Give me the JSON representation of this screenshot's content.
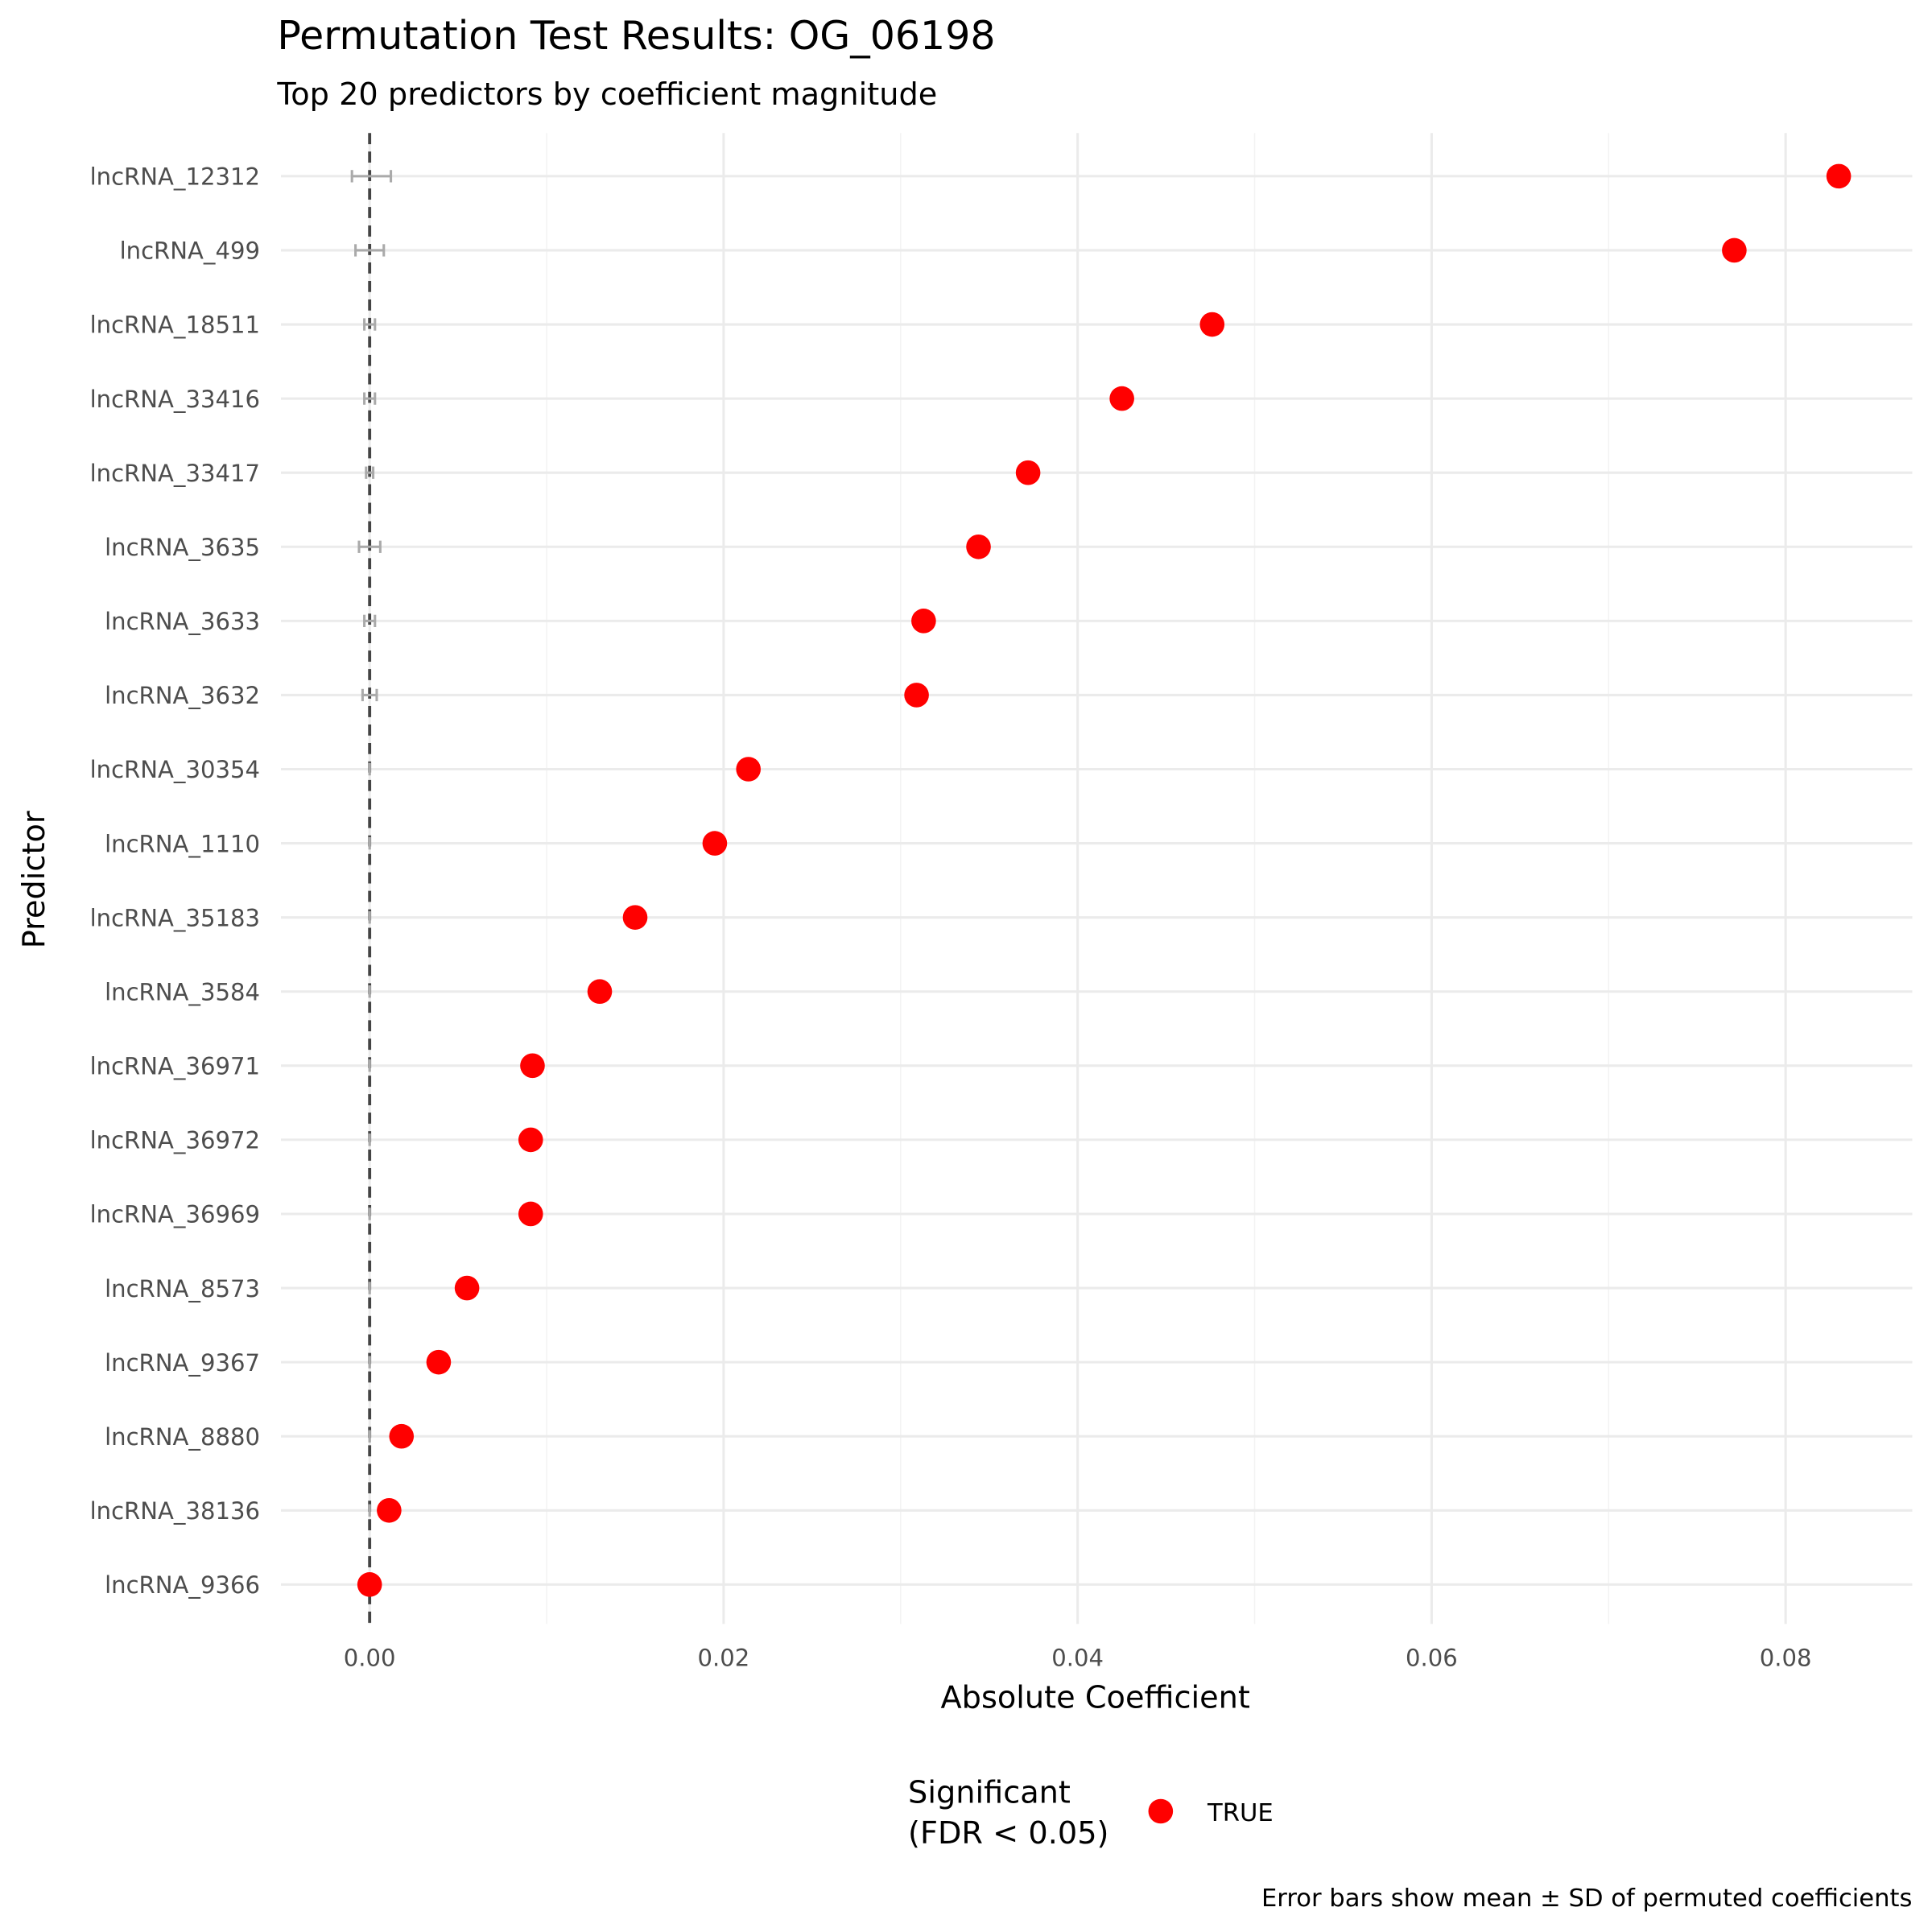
{
  "chart_data": {
    "type": "scatter",
    "title": "Permutation Test Results: OG_06198",
    "subtitle": "Top 20 predictors by coefficient magnitude",
    "xlabel": "Absolute Coefficient",
    "ylabel": "Predictor",
    "xlim": [
      -0.005,
      0.087
    ],
    "x_ticks": [
      0,
      0.02,
      0.04,
      0.06,
      0.08
    ],
    "x_tick_labels": [
      "0.00",
      "0.02",
      "0.04",
      "0.06",
      "0.08"
    ],
    "reference_line": 0,
    "grid": true,
    "legend": {
      "title_line1": "Significant",
      "title_line2": "(FDR < 0.05)",
      "entries": [
        "TRUE"
      ],
      "position": "bottom",
      "color": "#ff0000"
    },
    "caption": "Error bars show mean ± SD of permuted coefficients",
    "points": [
      {
        "predictor": "lncRNA_12312",
        "value": 0.083,
        "perm_mean": 0.0001,
        "perm_sd": 0.0011,
        "significant": true
      },
      {
        "predictor": "lncRNA_499",
        "value": 0.0771,
        "perm_mean": 0.0,
        "perm_sd": 0.0008,
        "significant": true
      },
      {
        "predictor": "lncRNA_18511",
        "value": 0.0476,
        "perm_mean": 0.0,
        "perm_sd": 0.0003,
        "significant": true
      },
      {
        "predictor": "lncRNA_33416",
        "value": 0.0425,
        "perm_mean": 0.0,
        "perm_sd": 0.0003,
        "significant": true
      },
      {
        "predictor": "lncRNA_33417",
        "value": 0.0372,
        "perm_mean": 0.0,
        "perm_sd": 0.0002,
        "significant": true
      },
      {
        "predictor": "lncRNA_3635",
        "value": 0.0344,
        "perm_mean": 0.0,
        "perm_sd": 0.0006,
        "significant": true
      },
      {
        "predictor": "lncRNA_3633",
        "value": 0.0313,
        "perm_mean": 0.0,
        "perm_sd": 0.0003,
        "significant": true
      },
      {
        "predictor": "lncRNA_3632",
        "value": 0.0309,
        "perm_mean": 0.0,
        "perm_sd": 0.0004,
        "significant": true
      },
      {
        "predictor": "lncRNA_30354",
        "value": 0.0214,
        "perm_mean": 0.0,
        "perm_sd": 0.0,
        "significant": true
      },
      {
        "predictor": "lncRNA_1110",
        "value": 0.0195,
        "perm_mean": 0.0,
        "perm_sd": 0.0,
        "significant": true
      },
      {
        "predictor": "lncRNA_35183",
        "value": 0.015,
        "perm_mean": 0.0,
        "perm_sd": 0.0,
        "significant": true
      },
      {
        "predictor": "lncRNA_3584",
        "value": 0.013,
        "perm_mean": 0.0,
        "perm_sd": 0.0,
        "significant": true
      },
      {
        "predictor": "lncRNA_36971",
        "value": 0.0092,
        "perm_mean": 0.0,
        "perm_sd": 0.0,
        "significant": true
      },
      {
        "predictor": "lncRNA_36972",
        "value": 0.0091,
        "perm_mean": 0.0,
        "perm_sd": 0.0,
        "significant": true
      },
      {
        "predictor": "lncRNA_36969",
        "value": 0.0091,
        "perm_mean": 0.0,
        "perm_sd": 0.0,
        "significant": true
      },
      {
        "predictor": "lncRNA_8573",
        "value": 0.0055,
        "perm_mean": 0.0,
        "perm_sd": 0.0,
        "significant": true
      },
      {
        "predictor": "lncRNA_9367",
        "value": 0.0039,
        "perm_mean": 0.0,
        "perm_sd": 0.0,
        "significant": true
      },
      {
        "predictor": "lncRNA_8880",
        "value": 0.0018,
        "perm_mean": 0.0,
        "perm_sd": 0.0,
        "significant": true
      },
      {
        "predictor": "lncRNA_38136",
        "value": 0.0011,
        "perm_mean": 0.0,
        "perm_sd": 0.0,
        "significant": true
      },
      {
        "predictor": "lncRNA_9366",
        "value": 0.0,
        "perm_mean": 0.0,
        "perm_sd": 0.0,
        "significant": true
      }
    ]
  }
}
